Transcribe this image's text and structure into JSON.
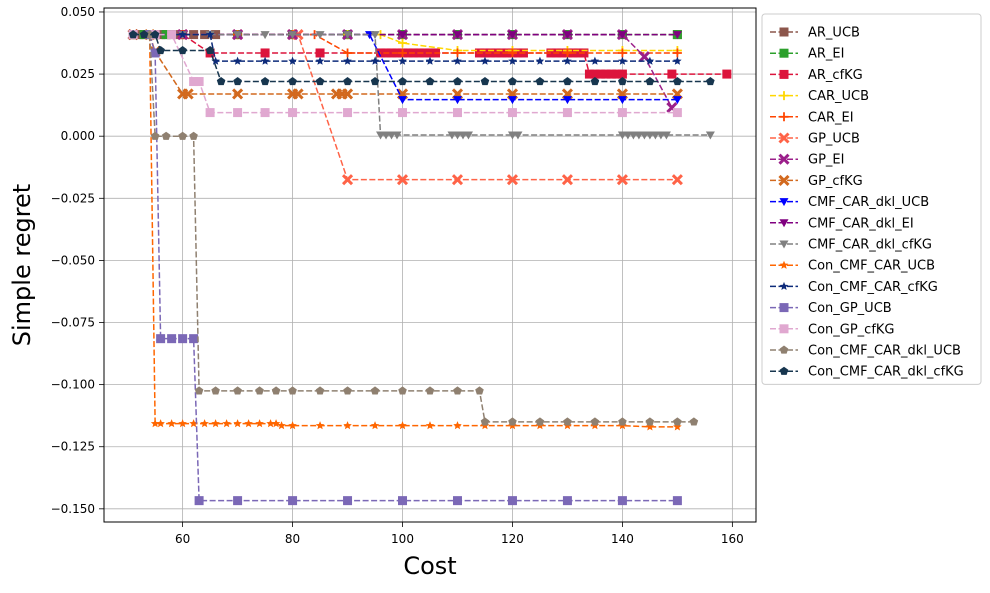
{
  "chart_data": {
    "type": "line",
    "title": "",
    "xlabel": "Cost",
    "ylabel": "Simple regret",
    "xlim": [
      45.7,
      164.3
    ],
    "ylim": [
      -0.1553,
      0.0516
    ],
    "xticks": [
      60,
      80,
      100,
      120,
      140,
      160
    ],
    "yticks": [
      0.05,
      0.025,
      0.0,
      -0.025,
      -0.05,
      -0.075,
      -0.1,
      -0.125,
      -0.15
    ],
    "xtick_labels": [
      "60",
      "80",
      "100",
      "120",
      "140",
      "160"
    ],
    "ytick_labels": [
      "0.050",
      "0.025",
      "0.000",
      "−0.025",
      "−0.050",
      "−0.075",
      "−0.100",
      "−0.125",
      "−0.150"
    ],
    "grid": true,
    "legend_position": "outside-right",
    "series": [
      {
        "name": "AR_UCB",
        "color": "#8c564b",
        "marker": "square",
        "x": [
          51,
          52,
          53,
          54,
          55,
          56,
          57,
          58,
          59,
          60,
          62,
          64,
          66,
          70,
          80,
          90,
          100,
          110,
          120,
          130,
          140,
          150
        ],
        "y": [
          0.0409,
          0.0409,
          0.0409,
          0.0409,
          0.0409,
          0.0409,
          0.0409,
          0.0409,
          0.0409,
          0.0409,
          0.0409,
          0.0409,
          0.0409,
          0.0409,
          0.0409,
          0.0409,
          0.0409,
          0.0409,
          0.0409,
          0.0409,
          0.0409,
          0.0409
        ]
      },
      {
        "name": "AR_EI",
        "color": "#2ca02c",
        "marker": "square",
        "x": [
          51,
          53,
          55,
          57,
          60,
          70,
          80,
          90,
          100,
          110,
          120,
          130,
          140,
          150
        ],
        "y": [
          0.0409,
          0.0409,
          0.0409,
          0.0409,
          0.0409,
          0.0409,
          0.0409,
          0.0409,
          0.0409,
          0.0409,
          0.0409,
          0.0409,
          0.0409,
          0.0409
        ]
      },
      {
        "name": "AR_cfKG",
        "color": "#dc143c",
        "marker": "square",
        "x": [
          51,
          55,
          60,
          65,
          75,
          85,
          96,
          97,
          98,
          99,
          100,
          101,
          102,
          103,
          104,
          105,
          106,
          114,
          115,
          116,
          117,
          118,
          119,
          120,
          121,
          122,
          127,
          128,
          129,
          130,
          131,
          132,
          133,
          134,
          135,
          136,
          137,
          138,
          139,
          140,
          149,
          159
        ],
        "y": [
          0.0409,
          0.0409,
          0.0409,
          0.0335,
          0.0335,
          0.0335,
          0.0335,
          0.0335,
          0.0335,
          0.0335,
          0.0335,
          0.0335,
          0.0335,
          0.0335,
          0.0335,
          0.0335,
          0.0335,
          0.0335,
          0.0335,
          0.0335,
          0.0335,
          0.0335,
          0.0335,
          0.0335,
          0.0335,
          0.0335,
          0.0335,
          0.0335,
          0.0335,
          0.0335,
          0.0335,
          0.0335,
          0.0335,
          0.025,
          0.025,
          0.025,
          0.025,
          0.025,
          0.025,
          0.025,
          0.025,
          0.025
        ]
      },
      {
        "name": "CAR_UCB",
        "color": "#ffd700",
        "marker": "plus",
        "x": [
          51,
          60,
          70,
          80,
          90,
          96,
          100,
          110,
          120,
          130,
          140,
          150
        ],
        "y": [
          0.0409,
          0.0409,
          0.0409,
          0.0409,
          0.0409,
          0.0409,
          0.0375,
          0.0345,
          0.0345,
          0.0345,
          0.0345,
          0.0345
        ]
      },
      {
        "name": "CAR_EI",
        "color": "#ff4500",
        "marker": "plus",
        "x": [
          51,
          60,
          70,
          80,
          84,
          90,
          100,
          110,
          120,
          130,
          140,
          150
        ],
        "y": [
          0.0409,
          0.0409,
          0.0409,
          0.0409,
          0.0409,
          0.0335,
          0.0335,
          0.0335,
          0.0335,
          0.0335,
          0.0335,
          0.0335
        ]
      },
      {
        "name": "GP_UCB",
        "color": "#ff6347",
        "marker": "x",
        "x": [
          51,
          60,
          70,
          80,
          81,
          90,
          100,
          110,
          120,
          130,
          140,
          150
        ],
        "y": [
          0.0409,
          0.0409,
          0.0409,
          0.0409,
          0.0409,
          -0.0175,
          -0.0175,
          -0.0175,
          -0.0175,
          -0.0175,
          -0.0175,
          -0.0175
        ]
      },
      {
        "name": "GP_EI",
        "color": "#9b1f8a",
        "marker": "x",
        "x": [
          51,
          60,
          70,
          80,
          90,
          100,
          110,
          120,
          130,
          140,
          144,
          149
        ],
        "y": [
          0.0409,
          0.0409,
          0.0409,
          0.0409,
          0.0409,
          0.0409,
          0.0409,
          0.0409,
          0.0409,
          0.0409,
          0.032,
          0.0115
        ]
      },
      {
        "name": "GP_cfKG",
        "color": "#d2691e",
        "marker": "x",
        "x": [
          51,
          54,
          55,
          60,
          61,
          70,
          80,
          81,
          88,
          89,
          90,
          100,
          110,
          120,
          130,
          140,
          150
        ],
        "y": [
          0.0409,
          0.0409,
          0.034,
          0.017,
          0.017,
          0.017,
          0.017,
          0.017,
          0.017,
          0.017,
          0.017,
          0.017,
          0.017,
          0.017,
          0.017,
          0.017,
          0.017
        ]
      },
      {
        "name": "CMF_CAR_dkl_UCB",
        "color": "#0000ff",
        "marker": "triangle-down",
        "x": [
          51,
          60,
          70,
          80,
          90,
          94,
          100,
          110,
          120,
          130,
          140,
          150
        ],
        "y": [
          0.0409,
          0.0409,
          0.0409,
          0.0409,
          0.0409,
          0.0409,
          0.0147,
          0.0147,
          0.0147,
          0.0147,
          0.0147,
          0.0147
        ]
      },
      {
        "name": "CMF_CAR_dkl_EI",
        "color": "#800080",
        "marker": "triangle-down",
        "x": [
          51,
          60,
          70,
          80,
          90,
          100,
          110,
          120,
          130,
          140,
          150
        ],
        "y": [
          0.0409,
          0.0409,
          0.0409,
          0.0409,
          0.0409,
          0.0409,
          0.0409,
          0.0409,
          0.0409,
          0.0409,
          0.0409
        ]
      },
      {
        "name": "CMF_CAR_dkl_cfKG",
        "color": "#808080",
        "marker": "triangle-down",
        "x": [
          51,
          60,
          65,
          70,
          75,
          80,
          85,
          90,
          95,
          96,
          97,
          98,
          99,
          109,
          110,
          111,
          112,
          120,
          121,
          140,
          141,
          142,
          143,
          144,
          145,
          146,
          147,
          148,
          156
        ],
        "y": [
          0.0409,
          0.0409,
          0.0409,
          0.0409,
          0.0409,
          0.0409,
          0.0409,
          0.0409,
          0.0409,
          0.0005,
          0.0005,
          0.0005,
          0.0005,
          0.0005,
          0.0005,
          0.0005,
          0.0005,
          0.0005,
          0.0005,
          0.0005,
          0.0005,
          0.0005,
          0.0005,
          0.0005,
          0.0005,
          0.0005,
          0.0005,
          0.0005,
          0.0005
        ]
      },
      {
        "name": "Con_CMF_CAR_UCB",
        "color": "#ff6600",
        "marker": "star",
        "x": [
          51,
          54,
          55,
          56,
          58,
          60,
          62,
          64,
          66,
          68,
          70,
          72,
          74,
          76,
          77,
          78,
          80,
          85,
          90,
          95,
          100,
          105,
          110,
          115,
          120,
          125,
          130,
          135,
          140,
          145,
          150
        ],
        "y": [
          0.0409,
          0.0409,
          -0.1157,
          -0.1157,
          -0.1157,
          -0.1157,
          -0.1157,
          -0.1157,
          -0.1157,
          -0.1157,
          -0.1157,
          -0.1157,
          -0.1157,
          -0.1157,
          -0.1157,
          -0.1165,
          -0.1165,
          -0.1165,
          -0.1165,
          -0.1165,
          -0.1165,
          -0.1165,
          -0.1165,
          -0.1165,
          -0.1165,
          -0.1165,
          -0.1165,
          -0.1165,
          -0.1165,
          -0.117,
          -0.117
        ]
      },
      {
        "name": "Con_CMF_CAR_cfKG",
        "color": "#0d2b7a",
        "marker": "star",
        "x": [
          51,
          55,
          60,
          65,
          66,
          70,
          75,
          80,
          85,
          90,
          95,
          100,
          105,
          110,
          115,
          120,
          125,
          130,
          135,
          140,
          145,
          150
        ],
        "y": [
          0.0409,
          0.0409,
          0.0409,
          0.0409,
          0.0302,
          0.0302,
          0.0302,
          0.0302,
          0.0302,
          0.0302,
          0.0302,
          0.0302,
          0.0302,
          0.0302,
          0.0302,
          0.0302,
          0.0302,
          0.0302,
          0.0302,
          0.0302,
          0.0302,
          0.0302
        ]
      },
      {
        "name": "Con_GP_UCB",
        "color": "#7b68b6",
        "marker": "square",
        "x": [
          51,
          54,
          55,
          56,
          58,
          60,
          62,
          63,
          70,
          80,
          90,
          100,
          110,
          120,
          130,
          140,
          150
        ],
        "y": [
          0.0409,
          0.0409,
          0.0335,
          -0.0815,
          -0.0815,
          -0.0815,
          -0.0815,
          -0.1467,
          -0.1467,
          -0.1467,
          -0.1467,
          -0.1467,
          -0.1467,
          -0.1467,
          -0.1467,
          -0.1467,
          -0.1467
        ]
      },
      {
        "name": "Con_GP_cfKG",
        "color": "#e0a8d0",
        "marker": "square",
        "x": [
          51,
          55,
          58,
          62,
          63,
          65,
          70,
          75,
          80,
          90,
          100,
          110,
          120,
          130,
          140,
          150
        ],
        "y": [
          0.0409,
          0.0409,
          0.0409,
          0.022,
          0.022,
          0.0095,
          0.0095,
          0.0095,
          0.0095,
          0.0095,
          0.0095,
          0.0095,
          0.0095,
          0.0095,
          0.0095,
          0.0095
        ]
      },
      {
        "name": "Con_CMF_CAR_dkl_UCB",
        "color": "#8f8070",
        "marker": "pentagon",
        "x": [
          51,
          54,
          55,
          57,
          60,
          62,
          63,
          66,
          70,
          74,
          77,
          80,
          85,
          90,
          95,
          100,
          105,
          110,
          114,
          115,
          120,
          125,
          130,
          135,
          140,
          145,
          150,
          153
        ],
        "y": [
          0.0409,
          0.0409,
          0.0,
          0.0,
          0.0,
          0.0,
          -0.1025,
          -0.1025,
          -0.1025,
          -0.1025,
          -0.1025,
          -0.1025,
          -0.1025,
          -0.1025,
          -0.1025,
          -0.1025,
          -0.1025,
          -0.1025,
          -0.1025,
          -0.115,
          -0.115,
          -0.115,
          -0.115,
          -0.115,
          -0.115,
          -0.115,
          -0.115,
          -0.115
        ]
      },
      {
        "name": "Con_CMF_CAR_dkl_cfKG",
        "color": "#17364f",
        "marker": "pentagon",
        "x": [
          51,
          53,
          55,
          56,
          60,
          65,
          67,
          70,
          75,
          80,
          85,
          90,
          95,
          100,
          105,
          110,
          115,
          120,
          125,
          130,
          135,
          140,
          145,
          150,
          156
        ],
        "y": [
          0.0409,
          0.0409,
          0.0409,
          0.0345,
          0.0345,
          0.0345,
          0.022,
          0.022,
          0.022,
          0.022,
          0.022,
          0.022,
          0.022,
          0.022,
          0.022,
          0.022,
          0.022,
          0.022,
          0.022,
          0.022,
          0.022,
          0.022,
          0.022,
          0.022,
          0.022
        ]
      }
    ]
  }
}
